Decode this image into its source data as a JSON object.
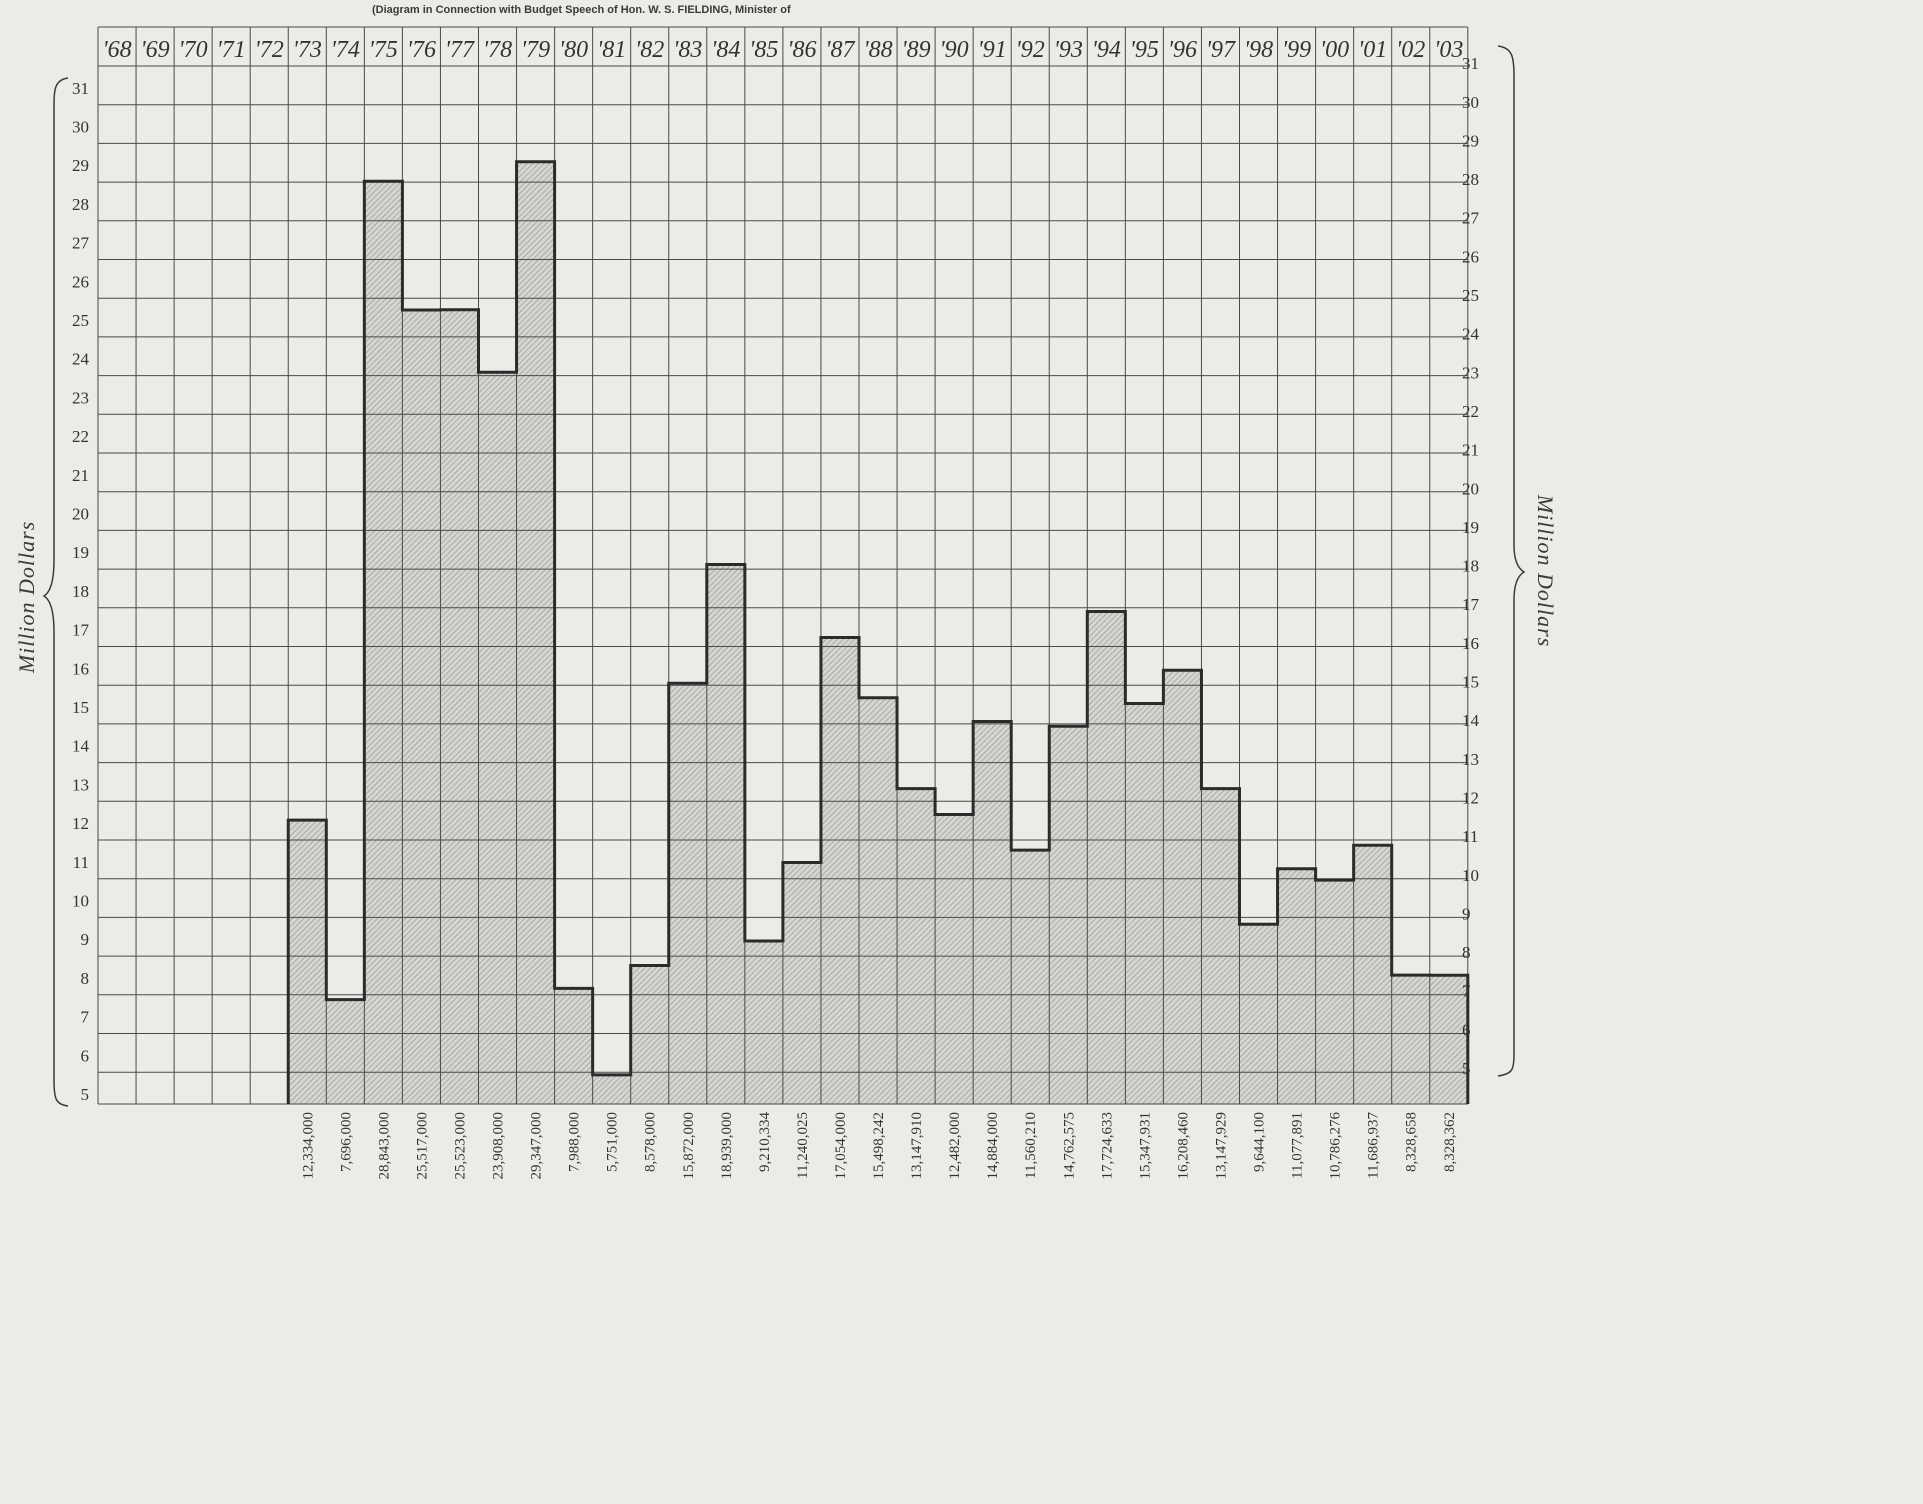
{
  "chart_data": {
    "type": "bar",
    "caption": "(Diagram in Connection with Budget Speech of Hon. W. S. FIELDING, Minister of",
    "ylabel_left": "Million Dollars",
    "ylabel_right": "Million Dollars",
    "categories": [
      "'68",
      "'69",
      "'70",
      "'71",
      "'72",
      "'73",
      "'74",
      "'75",
      "'76",
      "'77",
      "'78",
      "'79",
      "'80",
      "'81",
      "'82",
      "'83",
      "'84",
      "'85",
      "'86",
      "'87",
      "'88",
      "'89",
      "'90",
      "'91",
      "'92",
      "'93",
      "'94",
      "'95",
      "'96",
      "'97",
      "'98",
      "'99",
      "'00",
      "'01",
      "'02",
      "'03"
    ],
    "values": [
      null,
      null,
      null,
      null,
      null,
      12334000,
      7696000,
      28843000,
      25517000,
      25523000,
      23908000,
      29347000,
      7988000,
      5751000,
      8578000,
      15872000,
      18939000,
      9210334,
      11240025,
      17054000,
      15498242,
      13147910,
      12482000,
      14884000,
      11560210,
      14762575,
      17724633,
      15347931,
      16208460,
      13147929,
      9644100,
      11077891,
      10786276,
      11686937,
      8328658,
      8328362
    ],
    "value_labels": [
      "",
      "",
      "",
      "",
      "",
      "12,334,000",
      "7,696,000",
      "28,843,000",
      "25,517,000",
      "25,523,000",
      "23,908,000",
      "29,347,000",
      "7,988,000",
      "5,751,000",
      "8,578,000",
      "15,872,000",
      "18,939,000",
      "9,210,334",
      "11,240,025",
      "17,054,000",
      "15,498,242",
      "13,147,910",
      "12,482,000",
      "14,884,000",
      "11,560,210",
      "14,762,575",
      "17,724,633",
      "15,347,931",
      "16,208,460",
      "13,147,929",
      "9,644,100",
      "11,077,891",
      "10,786,276",
      "11,686,937",
      "8,328,658",
      "8,328,362"
    ],
    "left_ticks": [
      "5",
      "6",
      "7",
      "8",
      "9",
      "10",
      "11",
      "12",
      "13",
      "14",
      "15",
      "16",
      "17",
      "18",
      "19",
      "20",
      "21",
      "22",
      "23",
      "24",
      "25",
      "26",
      "27",
      "28",
      "29",
      "30",
      "31"
    ],
    "right_ticks": [
      "5",
      "6",
      "7",
      "8",
      "9",
      "10",
      "11",
      "12",
      "13",
      "14",
      "15",
      "16",
      "17",
      "18",
      "19",
      "20",
      "21",
      "22",
      "23",
      "24",
      "25",
      "26",
      "27",
      "28",
      "29",
      "30",
      "31"
    ],
    "grid": true
  }
}
